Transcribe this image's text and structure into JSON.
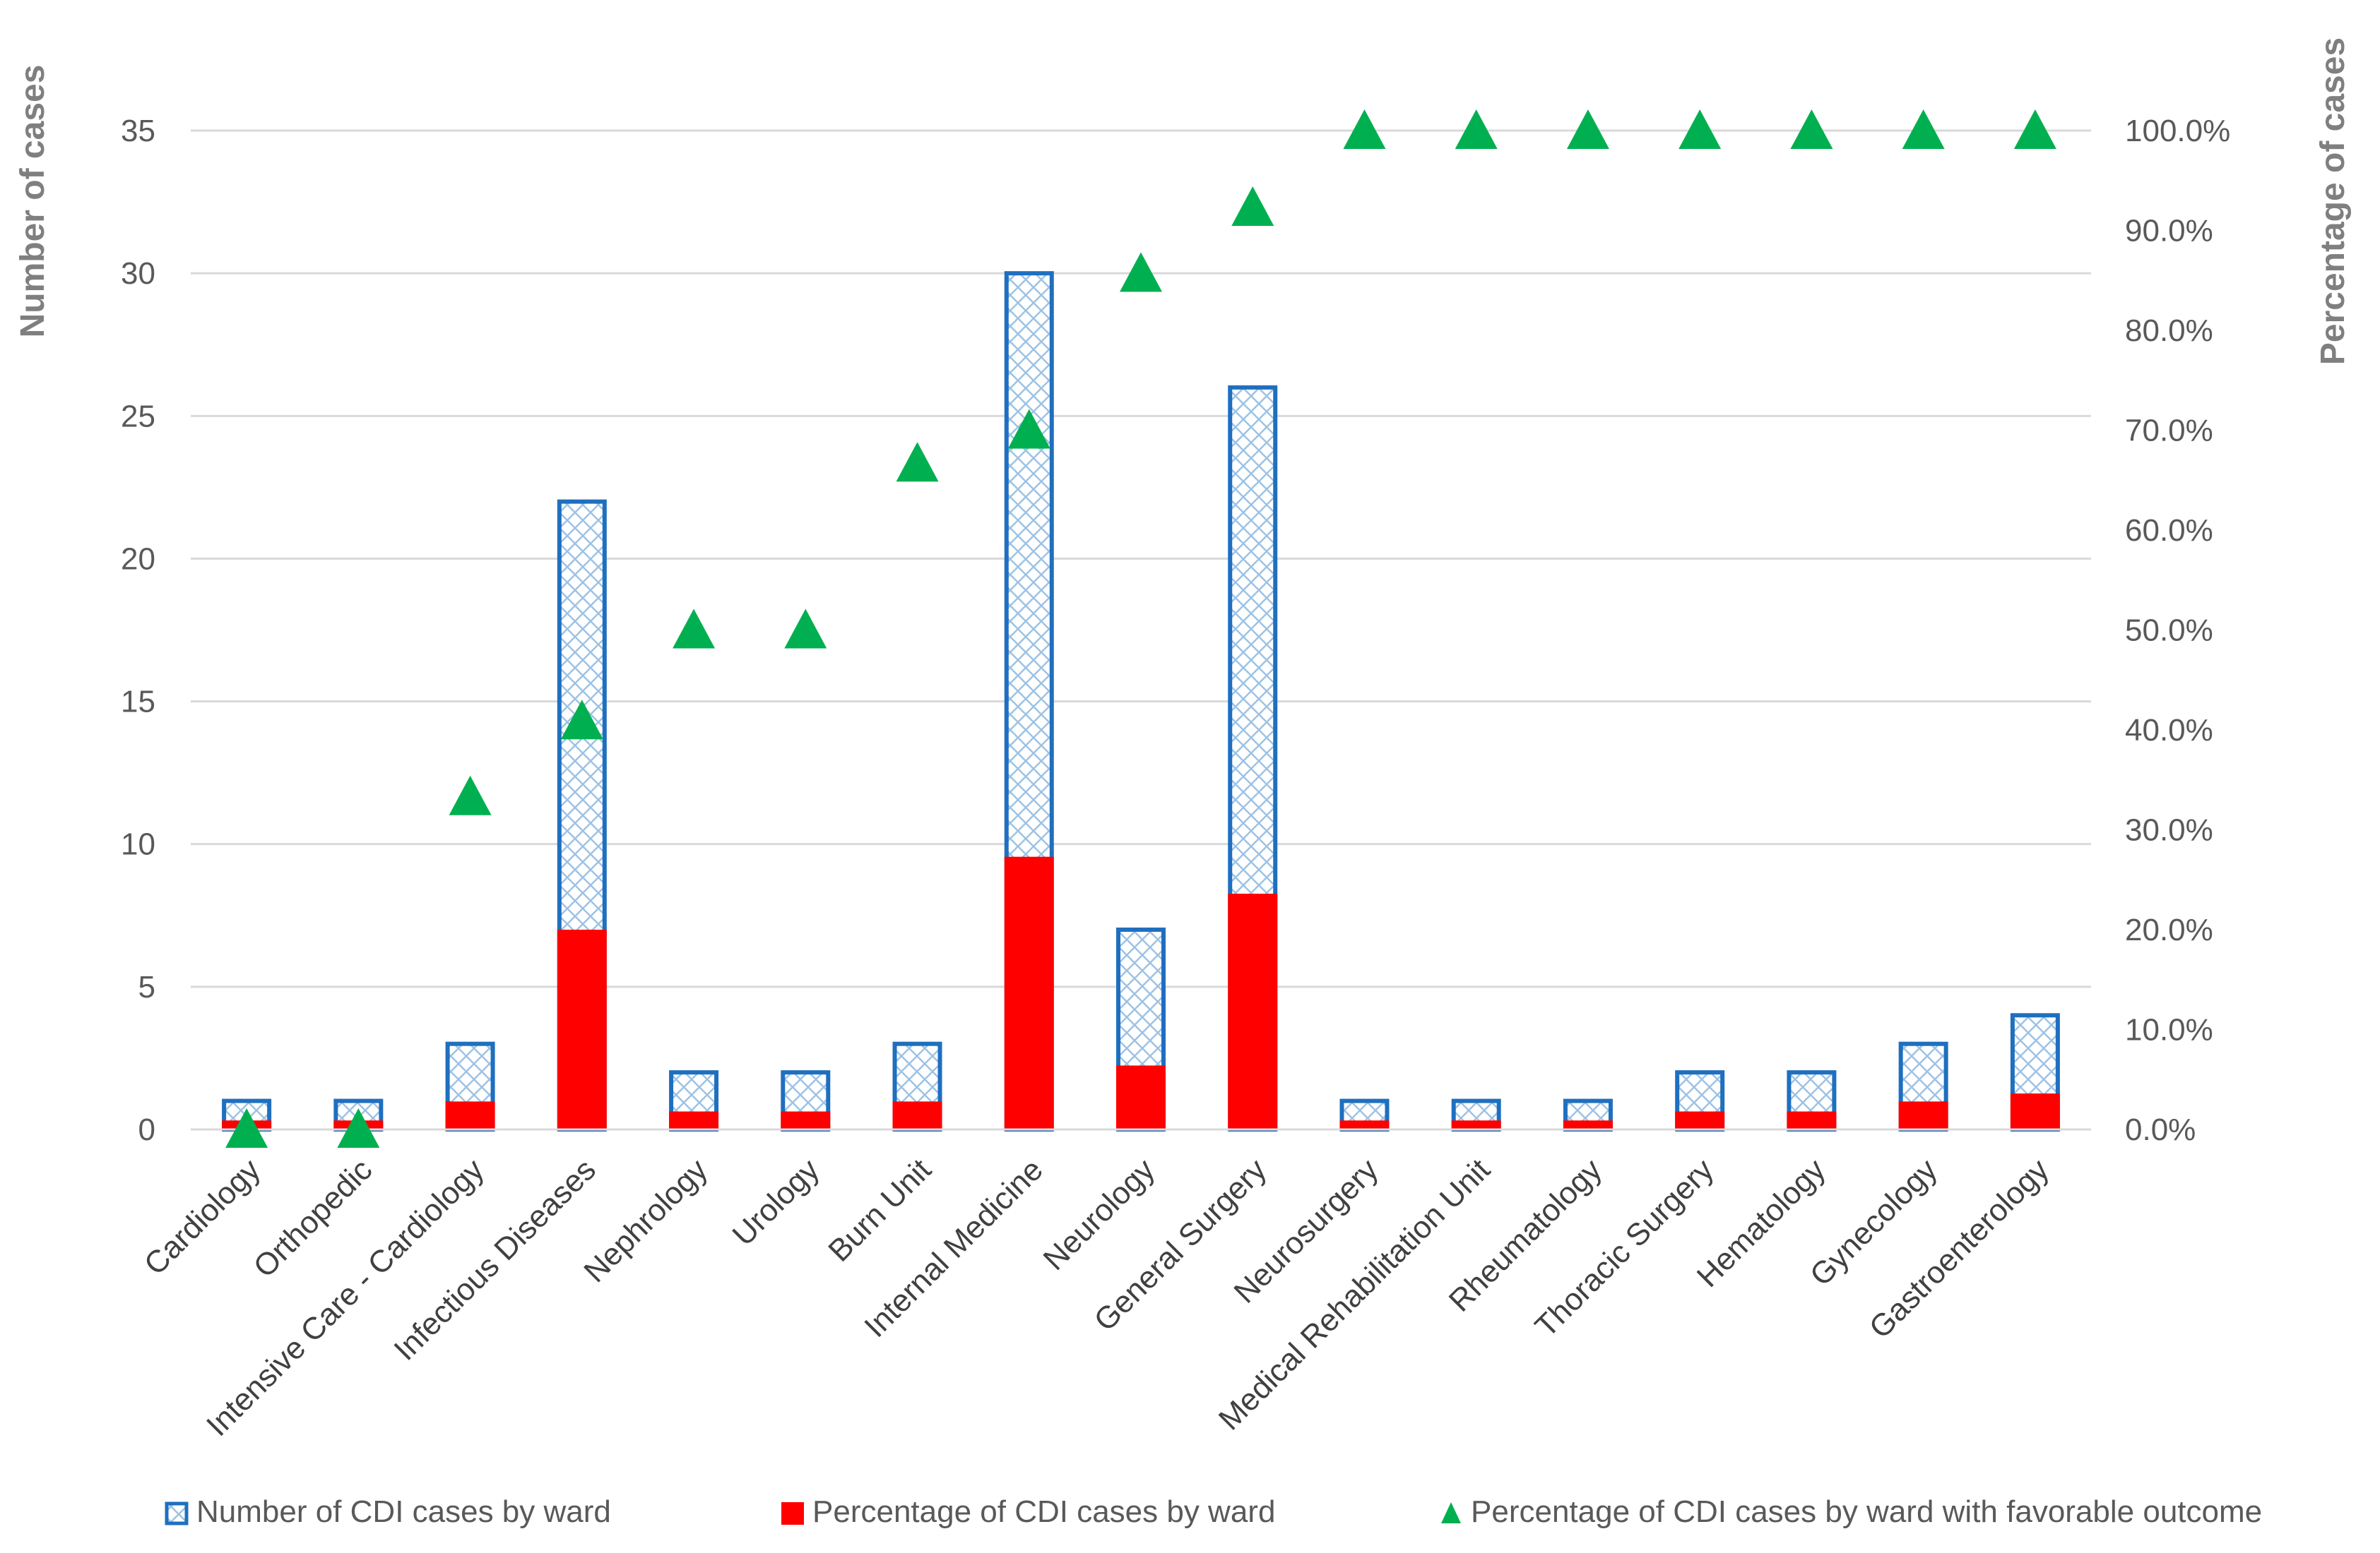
{
  "chart_data": {
    "type": "bar",
    "title": "",
    "xlabel": "",
    "ylabel": "Number of cases",
    "y2label": "Percentage of cases",
    "ylim": [
      0,
      35
    ],
    "y2lim": [
      0,
      100
    ],
    "yticks": [
      "0",
      "5",
      "10",
      "15",
      "20",
      "25",
      "30",
      "35"
    ],
    "y2ticks": [
      "0.0%",
      "10.0%",
      "20.0%",
      "30.0%",
      "40.0%",
      "50.0%",
      "60.0%",
      "70.0%",
      "80.0%",
      "90.0%",
      "100.0%"
    ],
    "grid": true,
    "legend_position": "bottom",
    "categories": [
      "Cardiology",
      "Orthopedic",
      "Intensive Care - Cardiology",
      "Infectious Diseases",
      "Nephrology",
      "Urology",
      "Burn Unit",
      "Internal Medicine",
      "Neurology",
      "General Surgery",
      "Neurosurgery",
      "Medical Rehabilitation Unit",
      "Rheumatology",
      "Thoracic Surgery",
      "Hematology",
      "Gynecology",
      "Gastroenterology"
    ],
    "series": [
      {
        "name": "Number of CDI cases by ward",
        "axis": "left",
        "kind": "bar",
        "style": "hatched",
        "color": "#1f6fbf",
        "values": [
          1,
          1,
          3,
          22,
          2,
          2,
          3,
          30,
          7,
          26,
          1,
          1,
          1,
          2,
          2,
          3,
          4
        ]
      },
      {
        "name": "Percentage of CDI cases by ward",
        "axis": "right",
        "kind": "bar",
        "style": "solid",
        "color": "#ff0000",
        "values": [
          0.9,
          0.9,
          2.8,
          20.0,
          1.8,
          1.8,
          2.8,
          27.3,
          6.4,
          23.6,
          0.9,
          0.9,
          0.9,
          1.8,
          1.8,
          2.8,
          3.6
        ]
      },
      {
        "name": "Percentage of CDI cases by ward with favorable outcome",
        "axis": "right",
        "kind": "marker",
        "marker": "triangle",
        "color": "#00b050",
        "values": [
          0.0,
          0.0,
          33.3,
          40.9,
          50.0,
          50.0,
          66.7,
          70.0,
          85.7,
          92.3,
          100.0,
          100.0,
          100.0,
          100.0,
          100.0,
          100.0,
          100.0
        ]
      }
    ]
  }
}
